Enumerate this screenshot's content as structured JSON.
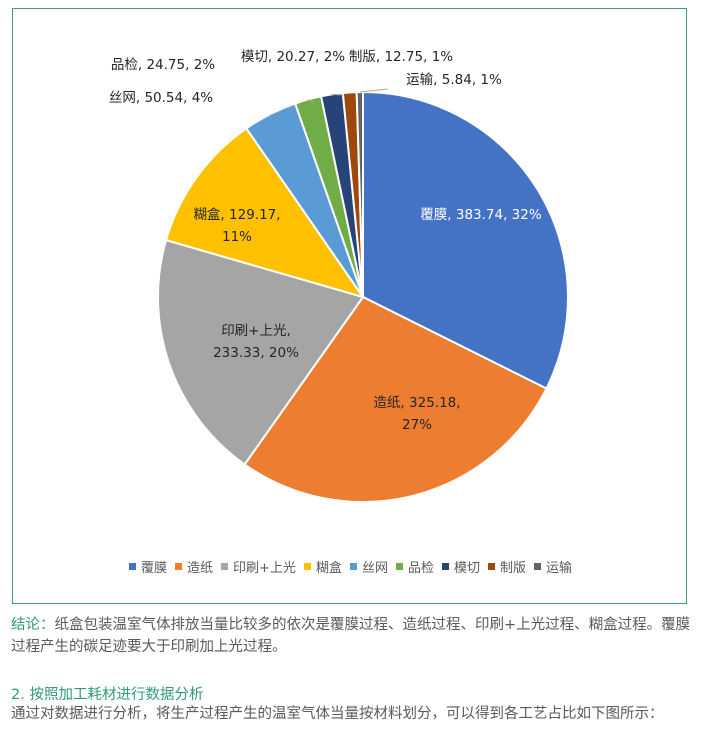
{
  "chart_data": {
    "type": "pie",
    "title": "",
    "slices": [
      {
        "name": "覆膜",
        "value": 383.74,
        "percent": "32%",
        "label_lines": [
          "覆膜, 383.74, 32%"
        ],
        "color": "#4472C4",
        "label_color": "#ffffff"
      },
      {
        "name": "造纸",
        "value": 325.18,
        "percent": "27%",
        "label_lines": [
          "造纸, 325.18,",
          "27%"
        ],
        "color": "#ED7D31",
        "label_color": "#262626"
      },
      {
        "name": "印刷+上光",
        "value": 233.33,
        "percent": "20%",
        "label_lines": [
          "印刷+上光,",
          "233.33, 20%"
        ],
        "color": "#A5A5A5",
        "label_color": "#262626"
      },
      {
        "name": "糊盒",
        "value": 129.17,
        "percent": "11%",
        "label_lines": [
          "糊盒, 129.17,",
          "11%"
        ],
        "color": "#FFC000",
        "label_color": "#262626"
      },
      {
        "name": "丝网",
        "value": 50.54,
        "percent": "4%",
        "label_lines": [
          "丝网, 50.54, 4%"
        ],
        "color": "#5B9BD5",
        "label_color": "#262626"
      },
      {
        "name": "品检",
        "value": 24.75,
        "percent": "2%",
        "label_lines": [
          "品检, 24.75, 2%"
        ],
        "color": "#70AD47",
        "label_color": "#262626"
      },
      {
        "name": "模切",
        "value": 20.27,
        "percent": "2%",
        "label_lines": [
          "模切, 20.27, 2%"
        ],
        "color": "#264478",
        "label_color": "#262626"
      },
      {
        "name": "制版",
        "value": 12.75,
        "percent": "1%",
        "label_lines": [
          "制版, 12.75, 1%"
        ],
        "color": "#9E480E",
        "label_color": "#262626"
      },
      {
        "name": "运输",
        "value": 5.84,
        "percent": "1%",
        "label_lines": [
          "运输, 5.84, 1%"
        ],
        "color": "#636363",
        "label_color": "#262626"
      }
    ],
    "legend_position": "bottom"
  },
  "text": {
    "conclusion_prefix": "结论：",
    "conclusion_body": "纸盒包装温室气体排放当量比较多的依次是覆膜过程、造纸过程、印刷+上光过程、糊盒过程。覆膜过程产生的碳足迹要大于印刷加上光过程。",
    "section_heading": "2. 按照加工耗材进行数据分析",
    "analysis_para": "通过对数据进行分析，将生产过程产生的温室气体当量按材料划分，可以得到各工艺占比如下图所示："
  },
  "colors": {
    "frame_border": "#3f9c7f",
    "accent_text": "#2f9a7a",
    "body_text": "#5a5a5a"
  }
}
